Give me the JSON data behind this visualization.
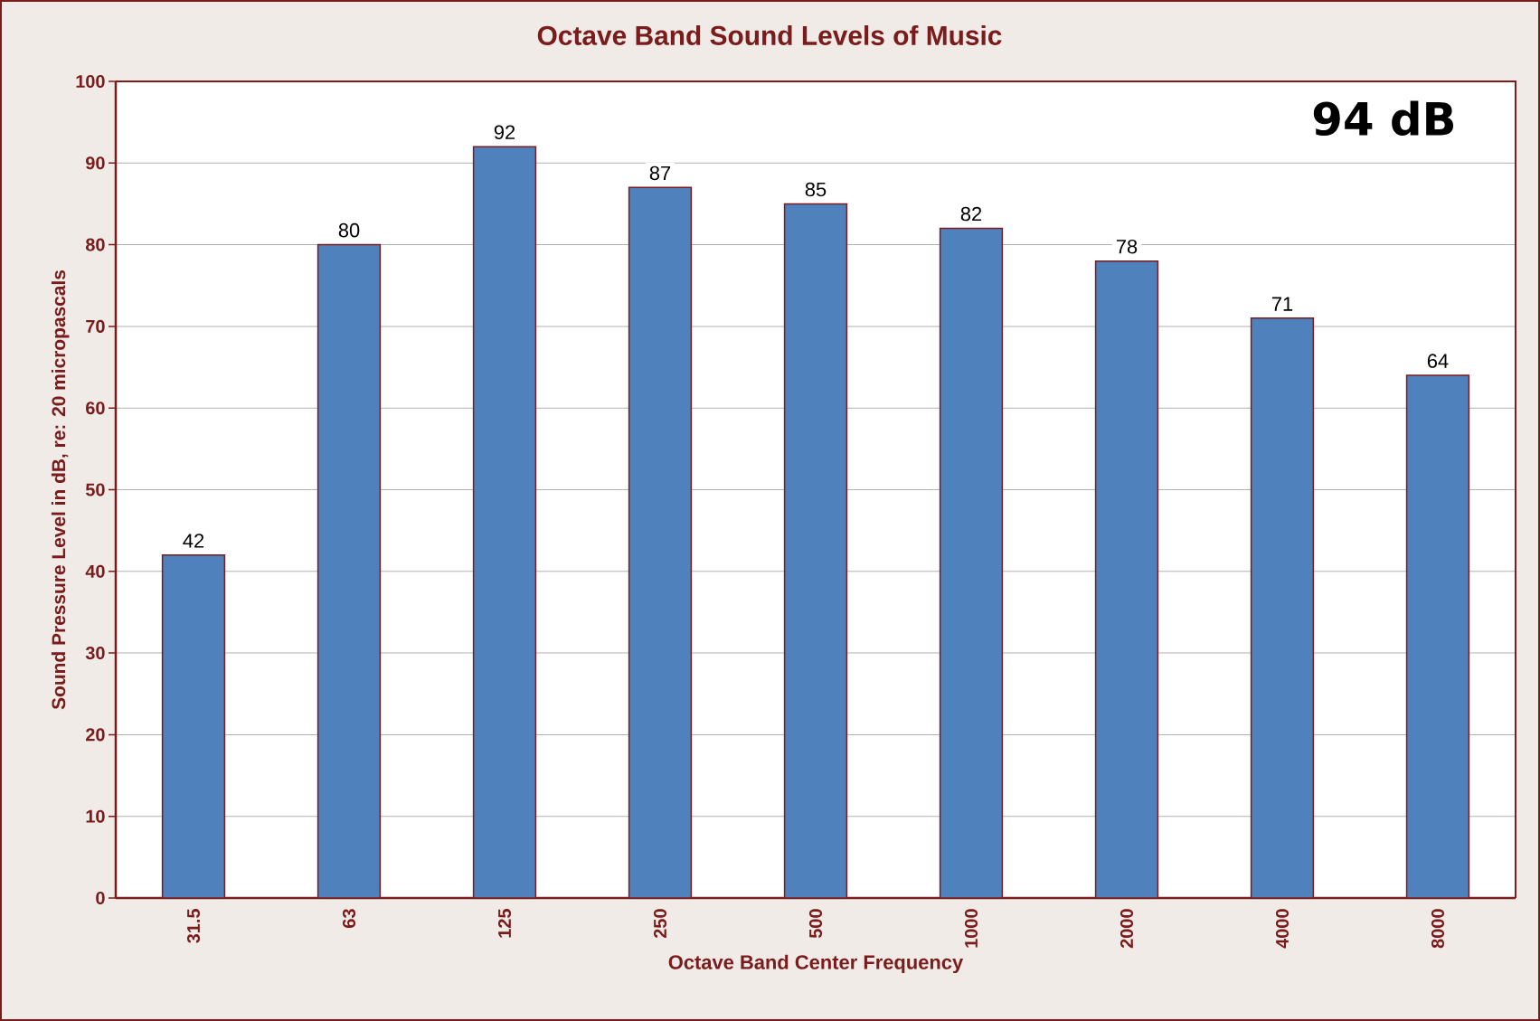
{
  "chart_data": {
    "type": "bar",
    "title": "Octave Band Sound Levels of Music",
    "xlabel": "Octave Band Center Frequency",
    "ylabel": "Sound Pressure Level in dB, re: 20 micropascals",
    "categories": [
      "31.5",
      "63",
      "125",
      "250",
      "500",
      "1000",
      "2000",
      "4000",
      "8000"
    ],
    "values": [
      42,
      80,
      92,
      87,
      85,
      82,
      78,
      71,
      64
    ],
    "color": "#4f81bd",
    "ylim": [
      0,
      100
    ],
    "yticks": [
      0,
      10,
      20,
      30,
      40,
      50,
      60,
      70,
      80,
      90,
      100
    ],
    "grid": "y",
    "data_labels": true,
    "annotations": [
      "94 dB"
    ]
  }
}
